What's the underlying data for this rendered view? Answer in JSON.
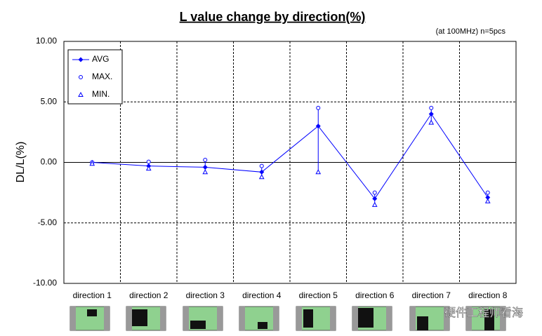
{
  "chart_data": {
    "type": "line",
    "title": "L value change by direction(%)",
    "subtitle": "(at 100MHz)  n=5pcs",
    "y_label": "DL/L(%)",
    "watermark": "硬件工程师看海",
    "categories": [
      "direction 1",
      "direction 2",
      "direction 3",
      "direction 4",
      "direction 5",
      "direction 6",
      "direction 7",
      "direction 8"
    ],
    "series": [
      {
        "name": "AVG",
        "color": "#0000ff",
        "marker": "diamond",
        "line": true,
        "values": [
          0,
          -0.3,
          -0.4,
          -0.8,
          3.0,
          -3.0,
          4.0,
          -2.9
        ]
      },
      {
        "name": "MAX.",
        "color": "#0000ff",
        "marker": "circle",
        "line": false,
        "values": [
          0,
          0.05,
          0.2,
          -0.3,
          4.5,
          -2.5,
          4.5,
          -2.5
        ]
      },
      {
        "name": "MIN.",
        "color": "#0000ff",
        "marker": "triangle",
        "line": false,
        "values": [
          -0.1,
          -0.5,
          -0.8,
          -1.2,
          -0.8,
          -3.5,
          3.3,
          -3.2
        ]
      }
    ],
    "ylim": [
      -10,
      10
    ],
    "yticks": [
      {
        "value": -10,
        "label": "-10.00"
      },
      {
        "value": -5,
        "label": "-5.00"
      },
      {
        "value": 0,
        "label": "0.00"
      },
      {
        "value": 5,
        "label": "5.00"
      },
      {
        "value": 10,
        "label": "10.00"
      }
    ],
    "grid": true,
    "legend": "top-left"
  }
}
